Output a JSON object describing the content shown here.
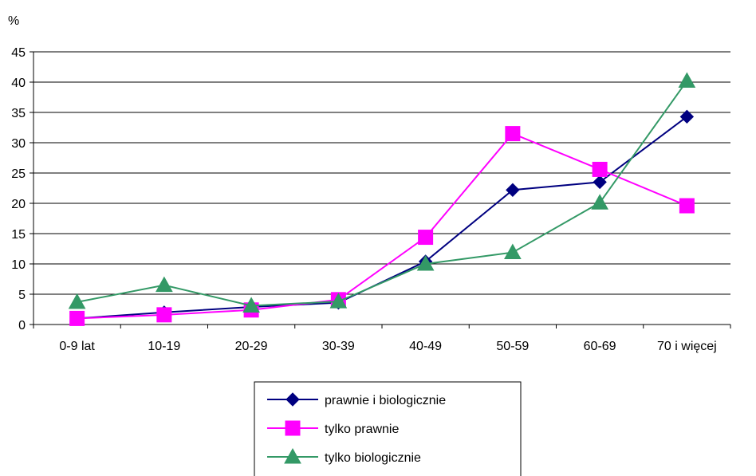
{
  "chart_data": {
    "type": "line",
    "ylabel": "%",
    "categories": [
      "0-9 lat",
      "10-19",
      "20-29",
      "30-39",
      "40-49",
      "50-59",
      "60-69",
      "70 i więcej"
    ],
    "ylim": [
      0,
      45
    ],
    "yticks": [
      0,
      5,
      10,
      15,
      20,
      25,
      30,
      35,
      40,
      45
    ],
    "grid": true,
    "legend_position": "bottom-center",
    "series": [
      {
        "name": "prawnie i biologicznie",
        "color": "#000080",
        "marker": "diamond",
        "values": [
          1.0,
          2.0,
          2.9,
          3.6,
          10.4,
          22.2,
          23.5,
          34.3
        ]
      },
      {
        "name": "tylko prawnie",
        "color": "#ff00ff",
        "marker": "square",
        "values": [
          1.0,
          1.6,
          2.4,
          4.1,
          14.4,
          31.5,
          25.6,
          19.6
        ]
      },
      {
        "name": "tylko biologicznie",
        "color": "#339966",
        "marker": "triangle",
        "values": [
          3.7,
          6.5,
          3.1,
          3.8,
          10.0,
          11.9,
          20.1,
          40.2
        ]
      }
    ]
  }
}
